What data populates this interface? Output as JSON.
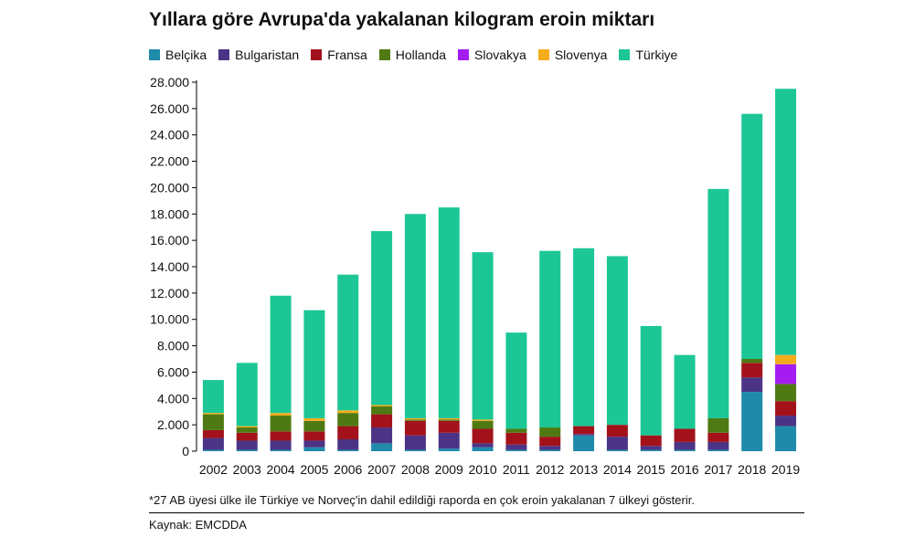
{
  "chart_data": {
    "type": "bar",
    "stacked": true,
    "title": "Yıllara göre Avrupa'da yakalanan kilogram eroin miktarı",
    "xlabel": "",
    "ylabel": "",
    "ylim": [
      0,
      28000
    ],
    "yticks": [
      "0",
      "2.000",
      "4.000",
      "6.000",
      "8.000",
      "10.000",
      "12.000",
      "14.000",
      "16.000",
      "18.000",
      "20.000",
      "22.000",
      "24.000",
      "26.000",
      "28.000"
    ],
    "ytick_values": [
      0,
      2000,
      4000,
      6000,
      8000,
      10000,
      12000,
      14000,
      16000,
      18000,
      20000,
      22000,
      24000,
      26000,
      28000
    ],
    "legend_position": "top",
    "grid": false,
    "categories": [
      "2002",
      "2003",
      "2004",
      "2005",
      "2006",
      "2007",
      "2008",
      "2009",
      "2010",
      "2011",
      "2012",
      "2013",
      "2014",
      "2015",
      "2016",
      "2017",
      "2018",
      "2019"
    ],
    "series": [
      {
        "name": "Belçika",
        "color": "#1f8aaa",
        "values": [
          100,
          100,
          100,
          300,
          100,
          600,
          100,
          200,
          300,
          100,
          100,
          1200,
          100,
          100,
          100,
          100,
          4500,
          1900
        ]
      },
      {
        "name": "Bulgaristan",
        "color": "#4b3486",
        "values": [
          900,
          700,
          700,
          500,
          800,
          1200,
          1100,
          1200,
          300,
          400,
          300,
          100,
          1000,
          300,
          600,
          600,
          1100,
          800
        ]
      },
      {
        "name": "Fransa",
        "color": "#a3121b",
        "values": [
          600,
          600,
          700,
          700,
          1000,
          1000,
          1100,
          900,
          1100,
          900,
          700,
          600,
          900,
          800,
          1000,
          700,
          1100,
          1100
        ]
      },
      {
        "name": "Hollanda",
        "color": "#4f7a13",
        "values": [
          1200,
          400,
          1200,
          800,
          1000,
          600,
          100,
          100,
          600,
          300,
          700,
          0,
          0,
          0,
          0,
          1100,
          300,
          1300
        ]
      },
      {
        "name": "Slovakya",
        "color": "#a51cf0",
        "values": [
          0,
          0,
          0,
          0,
          0,
          0,
          0,
          0,
          0,
          0,
          0,
          0,
          0,
          0,
          0,
          0,
          0,
          1500
        ]
      },
      {
        "name": "Slovenya",
        "color": "#f4ac1a",
        "values": [
          100,
          100,
          200,
          200,
          200,
          100,
          100,
          100,
          100,
          0,
          0,
          0,
          0,
          0,
          0,
          0,
          0,
          700
        ]
      },
      {
        "name": "Türkiye",
        "color": "#1cc795",
        "values": [
          2500,
          4800,
          8900,
          8200,
          10300,
          13200,
          15500,
          16000,
          12700,
          7300,
          13400,
          13500,
          12800,
          8300,
          5600,
          17400,
          18600,
          20200
        ]
      }
    ]
  },
  "footnote": "*27 AB üyesi ülke ile Türkiye ve Norveç'in dahil edildiği raporda en çok eroin yakalanan 7 ülkeyi gösterir.",
  "source": "Kaynak: EMCDDA"
}
